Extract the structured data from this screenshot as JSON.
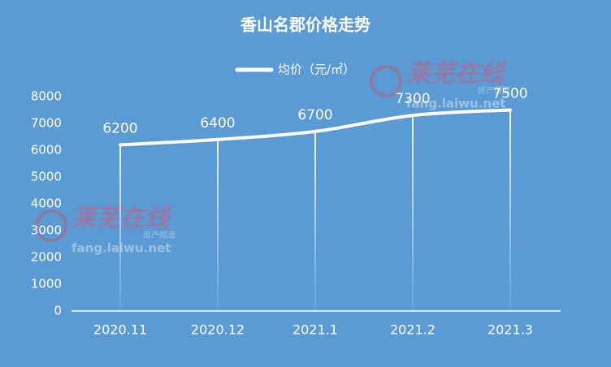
{
  "chart_data": {
    "type": "line",
    "title": "香山名郡价格走势",
    "categories": [
      "2020.11",
      "2020.12",
      "2021.1",
      "2021.2",
      "2021.3"
    ],
    "series": [
      {
        "name": "均价（元/㎡）",
        "color": "#ffffff",
        "values": [
          6200,
          6400,
          6700,
          7300,
          7500
        ]
      }
    ],
    "ylim": [
      0,
      8000
    ],
    "yticks": [
      0,
      1000,
      2000,
      3000,
      4000,
      5000,
      6000,
      7000,
      8000
    ],
    "grid": false,
    "legend": "top",
    "smooth": true,
    "data_labels": true,
    "background": "#5b9bd5"
  },
  "watermarks": [
    {
      "brand": "莱芜在线",
      "channel": "房产频道",
      "url": "fang.laiwu.net"
    },
    {
      "brand": "莱芜在线",
      "channel": "房产频道",
      "url": "fang.laiwu.net"
    }
  ]
}
